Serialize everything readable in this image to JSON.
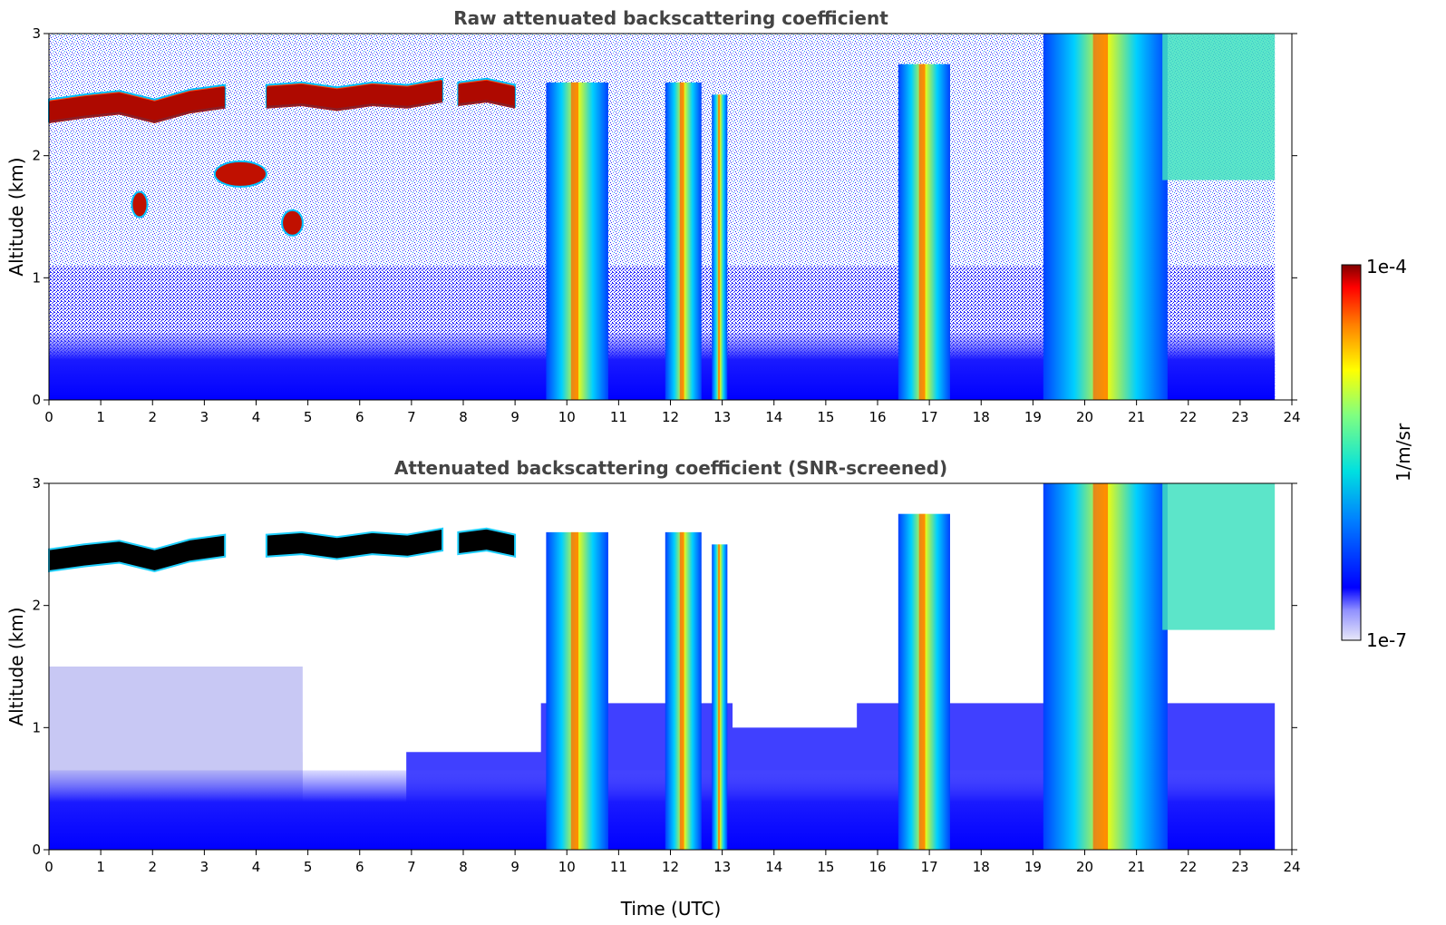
{
  "chart_data": [
    {
      "type": "heatmap",
      "title": "Raw attenuated backscattering coefficient",
      "xlabel": "",
      "ylabel": "Altitude (km)",
      "xlim": [
        0,
        24
      ],
      "ylim": [
        0,
        3
      ],
      "xticks": [
        "0",
        "1",
        "2",
        "3",
        "4",
        "5",
        "6",
        "7",
        "8",
        "9",
        "10",
        "11",
        "12",
        "13",
        "14",
        "15",
        "16",
        "17",
        "18",
        "19",
        "20",
        "21",
        "22",
        "23",
        "24"
      ],
      "yticks": [
        "0",
        "1",
        "2",
        "3"
      ],
      "data_end_hour": 23.67,
      "features": [
        {
          "kind": "cloud_layer",
          "x_start": 0.0,
          "x_end": 3.4,
          "altitude_km": [
            2.38,
            2.42,
            2.45,
            2.38,
            2.46,
            2.5
          ],
          "value": 0.0001
        },
        {
          "kind": "cloud_layer",
          "x_start": 4.2,
          "x_end": 7.6,
          "altitude_km": [
            2.5,
            2.52,
            2.48,
            2.52,
            2.5,
            2.55
          ],
          "value": 0.0001
        },
        {
          "kind": "cloud_layer",
          "x_start": 7.9,
          "x_end": 9.0,
          "altitude_km": [
            2.52,
            2.55,
            2.5
          ],
          "value": 0.0001
        },
        {
          "kind": "cloud_patch",
          "x_start": 3.2,
          "x_end": 4.2,
          "altitude_km": 1.85,
          "value": 6e-05
        },
        {
          "kind": "cloud_patch",
          "x_start": 1.6,
          "x_end": 1.9,
          "altitude_km": 1.6,
          "value": 5e-05
        },
        {
          "kind": "cloud_patch",
          "x_start": 4.5,
          "x_end": 4.9,
          "altitude_km": 1.45,
          "value": 5e-05
        },
        {
          "kind": "precip_shaft",
          "x_start": 9.6,
          "x_end": 10.8,
          "top_km": 2.6,
          "value": 2e-05
        },
        {
          "kind": "precip_shaft",
          "x_start": 11.9,
          "x_end": 12.6,
          "top_km": 2.6,
          "value": 2e-05
        },
        {
          "kind": "precip_shaft",
          "x_start": 12.8,
          "x_end": 13.1,
          "top_km": 2.5,
          "value": 1e-05
        },
        {
          "kind": "precip_shaft",
          "x_start": 16.4,
          "x_end": 17.4,
          "top_km": 2.75,
          "value": 1.5e-05
        },
        {
          "kind": "precip_shaft",
          "x_start": 19.2,
          "x_end": 21.6,
          "top_km": 3.0,
          "value": 2e-05
        },
        {
          "kind": "upper_cloud",
          "x_start": 21.5,
          "x_end": 23.67,
          "base_km": 1.8,
          "value": 5e-06
        }
      ]
    },
    {
      "type": "heatmap",
      "title": "Attenuated backscattering coefficient (SNR-screened)",
      "xlabel": "Time (UTC)",
      "ylabel": "Altitude (km)",
      "xlim": [
        0,
        24
      ],
      "ylim": [
        0,
        3
      ],
      "xticks": [
        "0",
        "1",
        "2",
        "3",
        "4",
        "5",
        "6",
        "7",
        "8",
        "9",
        "10",
        "11",
        "12",
        "13",
        "14",
        "15",
        "16",
        "17",
        "18",
        "19",
        "20",
        "21",
        "22",
        "23",
        "24"
      ],
      "yticks": [
        "0",
        "1",
        "2",
        "3"
      ],
      "data_end_hour": 23.67,
      "features": [
        {
          "kind": "cloud_layer_saturated",
          "x_start": 0.0,
          "x_end": 3.4,
          "altitude_km": [
            2.38,
            2.42,
            2.45,
            2.38,
            2.46,
            2.5
          ]
        },
        {
          "kind": "cloud_layer_saturated",
          "x_start": 4.2,
          "x_end": 7.6,
          "altitude_km": [
            2.5,
            2.52,
            2.48,
            2.52,
            2.5,
            2.55
          ]
        },
        {
          "kind": "cloud_layer_saturated",
          "x_start": 7.9,
          "x_end": 9.0,
          "altitude_km": [
            2.52,
            2.55,
            2.5
          ]
        },
        {
          "kind": "screened_region",
          "x_start": 4.9,
          "x_end": 9.5,
          "altitude_km": [
            0.8,
            2.3
          ]
        },
        {
          "kind": "screened_region",
          "x_start": 13.2,
          "x_end": 15.6,
          "altitude_km": [
            1.0,
            3.0
          ]
        }
      ]
    }
  ],
  "colorbar": {
    "label": "1/m/sr",
    "max_label": "1e-4",
    "min_label": "1e-7",
    "min_value": 1e-07,
    "max_value": 0.0001,
    "scale": "log",
    "colormap": "jet"
  },
  "colors": {
    "title_color": "#444444",
    "saturated": "#000000",
    "screened": "#ffffff"
  }
}
